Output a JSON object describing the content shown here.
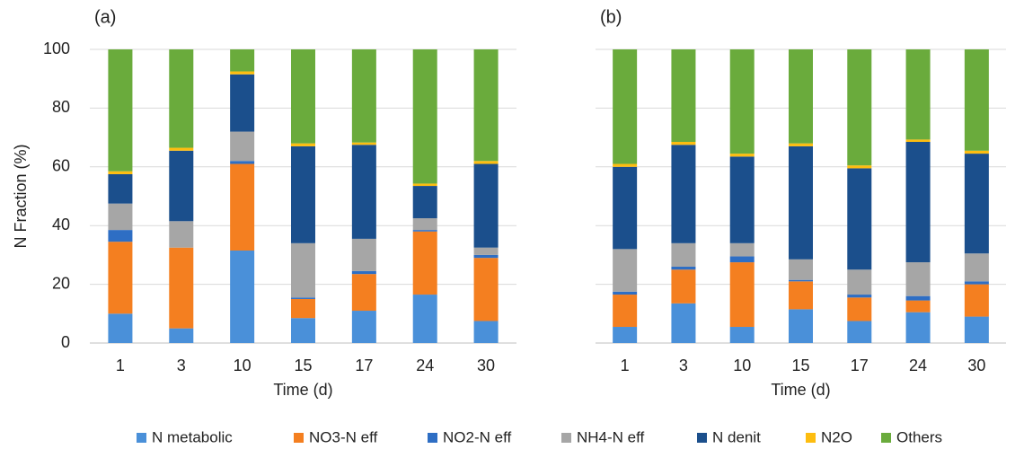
{
  "chart_data": [
    {
      "type": "stacked_bar",
      "title": "(a)",
      "xlabel": "Time (d)",
      "ylabel": "N Fraction (%)",
      "categories": [
        "1",
        "3",
        "10",
        "15",
        "17",
        "24",
        "30"
      ],
      "ylim": [
        0,
        100
      ],
      "yticks": [
        0,
        20,
        40,
        60,
        80,
        100
      ],
      "grid": true,
      "show_ytick_labels": true,
      "series": [
        {
          "name": "N metabolic",
          "color": "#4a90d9",
          "values": [
            10,
            5,
            31.5,
            8.5,
            11,
            16.5,
            7.5
          ]
        },
        {
          "name": "NO3-N eff",
          "color": "#f47f20",
          "values": [
            24.5,
            27.5,
            29.5,
            6.5,
            12.5,
            21.5,
            21.5
          ]
        },
        {
          "name": "NO2-N eff",
          "color": "#2e6ec4",
          "values": [
            4,
            0,
            1,
            0.5,
            1,
            0.5,
            1
          ]
        },
        {
          "name": "NH4-N eff",
          "color": "#a6a6a6",
          "values": [
            9,
            9,
            10,
            18.5,
            11,
            4,
            2.5
          ]
        },
        {
          "name": "N denit",
          "color": "#1b4f8c",
          "values": [
            10,
            24,
            19.5,
            33,
            32,
            11,
            28.5
          ]
        },
        {
          "name": "N2O",
          "color": "#fdbd10",
          "values": [
            1,
            1,
            1,
            1,
            0.8,
            0.8,
            1
          ]
        },
        {
          "name": "Others",
          "color": "#6aab3c",
          "values": [
            41.5,
            33.5,
            7.5,
            32,
            31.7,
            45.7,
            38
          ]
        }
      ]
    },
    {
      "type": "stacked_bar",
      "title": "(b)",
      "xlabel": "Time (d)",
      "categories": [
        "1",
        "3",
        "10",
        "15",
        "17",
        "24",
        "30"
      ],
      "ylim": [
        0,
        100
      ],
      "yticks": [
        0,
        20,
        40,
        60,
        80,
        100
      ],
      "grid": true,
      "show_ytick_labels": false,
      "series": [
        {
          "color": "#4a90d9",
          "values": [
            5.5,
            13.5,
            5.5,
            11.5,
            7.5,
            10.5,
            9
          ]
        },
        {
          "color": "#f47f20",
          "values": [
            11,
            11.5,
            22,
            9.5,
            8,
            4,
            11
          ]
        },
        {
          "color": "#2e6ec4",
          "values": [
            1,
            1,
            2,
            0.5,
            1,
            1.5,
            1
          ]
        },
        {
          "color": "#a6a6a6",
          "values": [
            14.5,
            8,
            4.5,
            7,
            8.5,
            11.5,
            9.5
          ]
        },
        {
          "color": "#1b4f8c",
          "values": [
            28,
            33.5,
            29.5,
            38.5,
            34.5,
            41,
            34
          ]
        },
        {
          "color": "#fdbd10",
          "values": [
            1,
            1,
            1,
            1,
            1,
            0.8,
            1
          ]
        },
        {
          "color": "#6aab3c",
          "values": [
            39,
            31.5,
            35.5,
            32,
            39.5,
            30.7,
            34.5
          ]
        }
      ]
    }
  ]
}
